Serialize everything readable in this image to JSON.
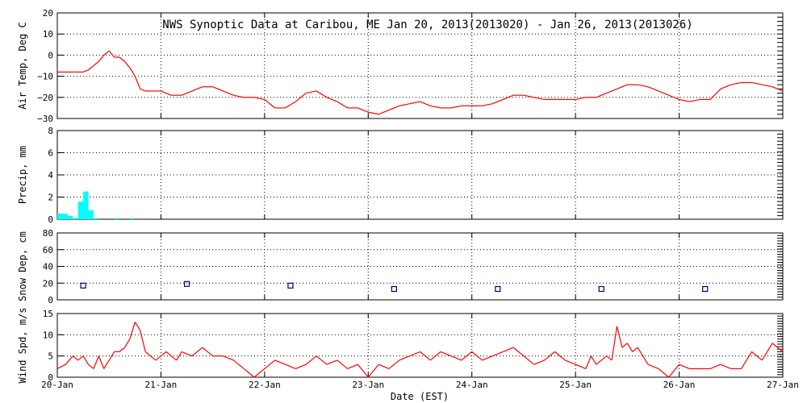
{
  "title": "NWS Synoptic Data at Caribou, ME   Jan 20, 2013(2013020) - Jan 26, 2013(2013026)",
  "x_axis": {
    "label": "Date (EST)",
    "ticks": [
      "20-Jan",
      "21-Jan",
      "22-Jan",
      "23-Jan",
      "24-Jan",
      "25-Jan",
      "26-Jan",
      "27-Jan"
    ]
  },
  "colors": {
    "temp": "#ff0000",
    "precip": "#00ffff",
    "snow": "#000080",
    "wind": "#ff0000",
    "grid": "#000000"
  },
  "chart_data": [
    {
      "type": "line",
      "ylabel": "Air Temp, Deg C",
      "ylim": [
        -30,
        20
      ],
      "yticks": [
        "20",
        "10",
        "0",
        "−10",
        "−20",
        "−30"
      ],
      "grid": true,
      "series": [
        {
          "x": [
            0,
            0.1,
            0.2,
            0.25,
            0.3,
            0.35,
            0.4,
            0.45,
            0.5,
            0.55,
            0.6,
            0.65,
            0.7,
            0.75,
            0.8,
            0.85,
            0.9,
            0.95,
            1,
            1.1,
            1.2,
            1.3,
            1.4,
            1.5,
            1.6,
            1.7,
            1.8,
            1.9,
            2,
            2.1,
            2.2,
            2.3,
            2.4,
            2.5,
            2.6,
            2.7,
            2.8,
            2.9,
            3,
            3.1,
            3.2,
            3.3,
            3.4,
            3.5,
            3.6,
            3.7,
            3.8,
            3.9,
            4,
            4.1,
            4.2,
            4.3,
            4.4,
            4.5,
            4.6,
            4.7,
            4.8,
            4.9,
            5,
            5.1,
            5.2,
            5.3,
            5.4,
            5.5,
            5.6,
            5.7,
            5.8,
            5.9,
            6,
            6.1,
            6.2,
            6.3,
            6.4,
            6.5,
            6.6,
            6.7,
            6.8,
            6.9,
            7
          ],
          "values": [
            -8,
            -8,
            -8,
            -8,
            -7,
            -5,
            -3,
            0,
            2,
            -1,
            -1,
            -3,
            -6,
            -10,
            -16,
            -17,
            -17,
            -17,
            -17,
            -19,
            -19,
            -17,
            -15,
            -15,
            -17,
            -19,
            -20,
            -20,
            -21,
            -25,
            -25,
            -22,
            -18,
            -17,
            -20,
            -22,
            -25,
            -25,
            -27,
            -28,
            -26,
            -24,
            -23,
            -22,
            -24,
            -25,
            -25,
            -24,
            -24,
            -24,
            -23,
            -21,
            -19,
            -19,
            -20,
            -21,
            -21,
            -21,
            -21,
            -20,
            -20,
            -18,
            -16,
            -14,
            -14,
            -15,
            -17,
            -19,
            -21,
            -22,
            -21,
            -21,
            -16,
            -14,
            -13,
            -13,
            -14,
            -15,
            -17
          ]
        }
      ]
    },
    {
      "type": "bar",
      "ylabel": "Precip, mm",
      "ylim": [
        0,
        8
      ],
      "yticks": [
        "8",
        "6",
        "4",
        "2",
        "0"
      ],
      "grid": true,
      "series": [
        {
          "x": [
            0.0,
            0.05,
            0.1,
            0.15,
            0.2,
            0.25,
            0.3,
            0.35,
            0.55,
            0.7
          ],
          "values": [
            0.5,
            0.5,
            0.3,
            0.1,
            1.6,
            2.5,
            0.8,
            0.1,
            0.1,
            0.1
          ]
        }
      ]
    },
    {
      "type": "scatter",
      "ylabel": "Snow Dep, cm",
      "ylim": [
        0,
        80
      ],
      "yticks": [
        "80",
        "60",
        "40",
        "20",
        "0"
      ],
      "grid": true,
      "series": [
        {
          "x": [
            0.25,
            1.25,
            2.25,
            3.25,
            4.25,
            5.25,
            6.25
          ],
          "values": [
            17,
            19,
            17,
            13,
            13,
            13,
            13
          ]
        }
      ]
    },
    {
      "type": "line",
      "ylabel": "Wind Spd, m/s",
      "ylim": [
        0,
        15
      ],
      "yticks": [
        "15",
        "10",
        "5",
        "0"
      ],
      "grid": true,
      "series": [
        {
          "x": [
            0,
            0.08,
            0.15,
            0.2,
            0.25,
            0.3,
            0.35,
            0.4,
            0.45,
            0.5,
            0.55,
            0.6,
            0.65,
            0.7,
            0.75,
            0.8,
            0.85,
            0.9,
            0.95,
            1,
            1.05,
            1.1,
            1.15,
            1.2,
            1.3,
            1.4,
            1.5,
            1.6,
            1.7,
            1.8,
            1.9,
            2,
            2.1,
            2.2,
            2.3,
            2.4,
            2.5,
            2.6,
            2.7,
            2.8,
            2.9,
            3,
            3.1,
            3.2,
            3.3,
            3.4,
            3.5,
            3.6,
            3.7,
            3.8,
            3.9,
            4,
            4.1,
            4.2,
            4.3,
            4.4,
            4.5,
            4.6,
            4.7,
            4.8,
            4.9,
            5,
            5.1,
            5.15,
            5.2,
            5.25,
            5.3,
            5.35,
            5.4,
            5.45,
            5.5,
            5.55,
            5.6,
            5.65,
            5.7,
            5.8,
            5.9,
            6,
            6.1,
            6.2,
            6.3,
            6.4,
            6.5,
            6.6,
            6.7,
            6.8,
            6.9,
            7
          ],
          "values": [
            2,
            3,
            5,
            4,
            5,
            3,
            2,
            5,
            2,
            4,
            6,
            6,
            7,
            9,
            13,
            11,
            6,
            5,
            4,
            5,
            6,
            5,
            4,
            6,
            5,
            7,
            5,
            5,
            4,
            2,
            0,
            2,
            4,
            3,
            2,
            3,
            5,
            3,
            4,
            2,
            3,
            0,
            3,
            2,
            4,
            5,
            6,
            4,
            6,
            5,
            4,
            6,
            4,
            5,
            6,
            7,
            5,
            3,
            4,
            6,
            4,
            3,
            2,
            5,
            3,
            4,
            5,
            4,
            12,
            7,
            8,
            6,
            7,
            5,
            3,
            2,
            0,
            3,
            2,
            2,
            2,
            3,
            2,
            2,
            6,
            4,
            8,
            6
          ]
        }
      ]
    }
  ]
}
